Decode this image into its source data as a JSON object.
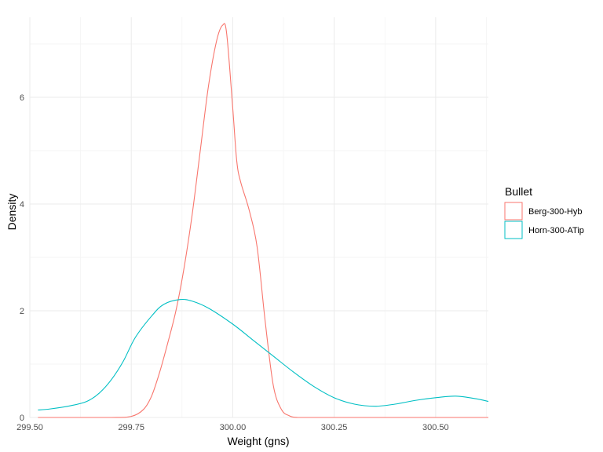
{
  "chart_data": {
    "type": "line",
    "subtype": "density",
    "title": "",
    "xlabel": "Weight (gns)",
    "ylabel": "Density",
    "xlim": [
      299.5,
      300.63
    ],
    "ylim": [
      0,
      7.5
    ],
    "x_ticks": [
      299.5,
      299.75,
      300.0,
      300.25,
      300.5
    ],
    "x_tick_labels": [
      "299.50",
      "299.75",
      "300.00",
      "300.25",
      "300.50"
    ],
    "y_ticks": [
      0,
      2,
      4,
      6
    ],
    "y_tick_labels": [
      "0",
      "2",
      "4",
      "6"
    ],
    "grid": true,
    "legend": {
      "title": "Bullet",
      "position": "right"
    },
    "series": [
      {
        "name": "Berg-300-Hyb",
        "color": "#F8766D",
        "x": [
          299.52,
          299.7,
          299.75,
          299.78,
          299.8,
          299.82,
          299.84,
          299.86,
          299.88,
          299.9,
          299.92,
          299.94,
          299.96,
          299.975,
          299.985,
          300.0,
          300.01,
          300.02,
          300.04,
          300.06,
          300.08,
          300.1,
          300.12,
          300.14,
          300.16,
          300.2,
          300.3,
          300.4,
          300.5,
          300.63
        ],
        "y": [
          0,
          0,
          0.02,
          0.15,
          0.4,
          0.85,
          1.4,
          2.0,
          2.8,
          3.8,
          5.0,
          6.2,
          7.05,
          7.35,
          7.2,
          5.8,
          4.8,
          4.4,
          3.9,
          3.2,
          1.8,
          0.6,
          0.15,
          0.03,
          0,
          0,
          0,
          0,
          0,
          0
        ]
      },
      {
        "name": "Horn-300-ATip",
        "color": "#00BFC4",
        "x": [
          299.52,
          299.55,
          299.6,
          299.64,
          299.67,
          299.7,
          299.73,
          299.76,
          299.8,
          299.83,
          299.87,
          299.9,
          299.94,
          300.0,
          300.05,
          300.1,
          300.15,
          300.2,
          300.25,
          300.3,
          300.35,
          300.4,
          300.45,
          300.5,
          300.55,
          300.6,
          300.63
        ],
        "y": [
          0.14,
          0.16,
          0.22,
          0.3,
          0.45,
          0.7,
          1.05,
          1.5,
          1.9,
          2.12,
          2.21,
          2.18,
          2.05,
          1.75,
          1.45,
          1.15,
          0.85,
          0.58,
          0.37,
          0.25,
          0.21,
          0.25,
          0.32,
          0.37,
          0.4,
          0.35,
          0.3
        ]
      }
    ]
  }
}
